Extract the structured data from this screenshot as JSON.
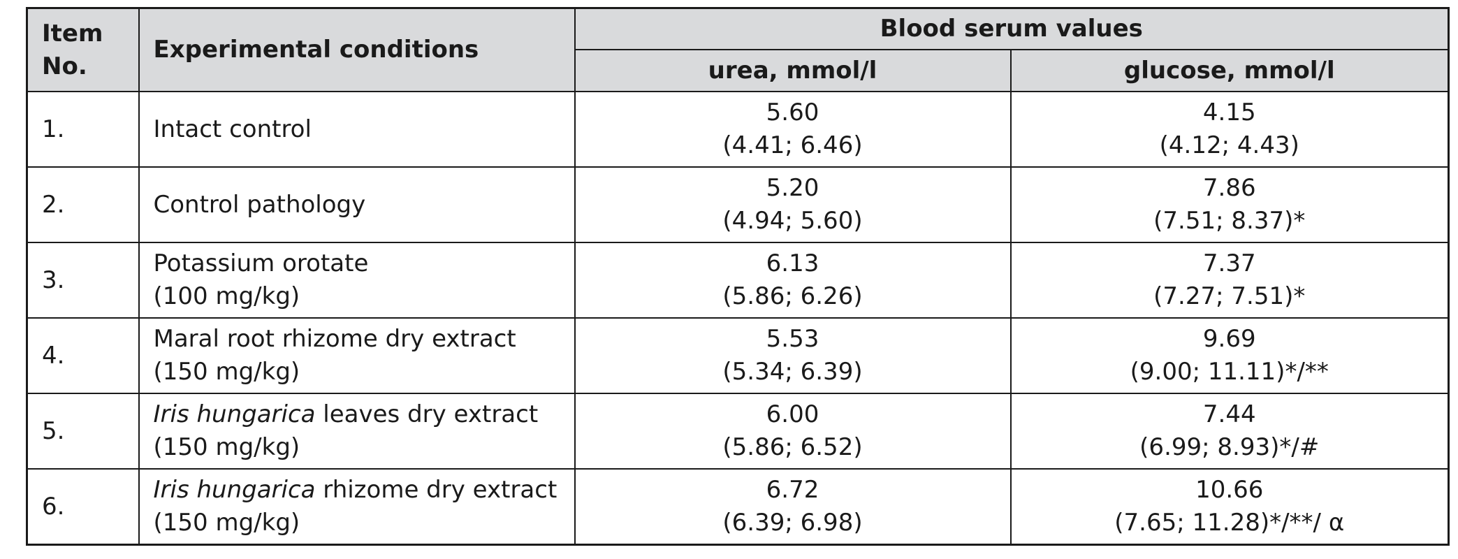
{
  "header": {
    "item_no": "Item No.",
    "conditions": "Experimental conditions",
    "group": "Blood serum values",
    "urea": "urea, mmol/l",
    "glucose": "glucose, mmol/l"
  },
  "rows": [
    {
      "num": "1.",
      "cond_italic": "",
      "cond_text": "Intact control",
      "cond_dose": "",
      "urea_median": "5.60",
      "urea_range": "(4.41; 6.46)",
      "glucose_median": "4.15",
      "glucose_range": "(4.12; 4.43)"
    },
    {
      "num": "2.",
      "cond_italic": "",
      "cond_text": "Control pathology",
      "cond_dose": "",
      "urea_median": "5.20",
      "urea_range": "(4.94; 5.60)",
      "glucose_median": "7.86",
      "glucose_range": "(7.51; 8.37)*"
    },
    {
      "num": "3.",
      "cond_italic": "",
      "cond_text": "Potassium orotate",
      "cond_dose": "(100 mg/kg)",
      "urea_median": "6.13",
      "urea_range": "(5.86; 6.26)",
      "glucose_median": "7.37",
      "glucose_range": "(7.27; 7.51)*"
    },
    {
      "num": "4.",
      "cond_italic": "",
      "cond_text": "Maral root rhizome dry extract",
      "cond_dose": "(150 mg/kg)",
      "urea_median": "5.53",
      "urea_range": "(5.34; 6.39)",
      "glucose_median": "9.69",
      "glucose_range": "(9.00; 11.11)*/**"
    },
    {
      "num": "5.",
      "cond_italic": "Iris hungarica",
      "cond_text": " leaves dry extract",
      "cond_dose": "(150 mg/kg)",
      "urea_median": "6.00",
      "urea_range": "(5.86; 6.52)",
      "glucose_median": "7.44",
      "glucose_range": "(6.99; 8.93)*/#"
    },
    {
      "num": "6.",
      "cond_italic": "Iris hungarica",
      "cond_text": " rhizome dry extract",
      "cond_dose": "(150 mg/kg)",
      "urea_median": "6.72",
      "urea_range": "(6.39; 6.98)",
      "glucose_median": "10.66",
      "glucose_range": "(7.65; 11.28)*/**/ α"
    }
  ]
}
